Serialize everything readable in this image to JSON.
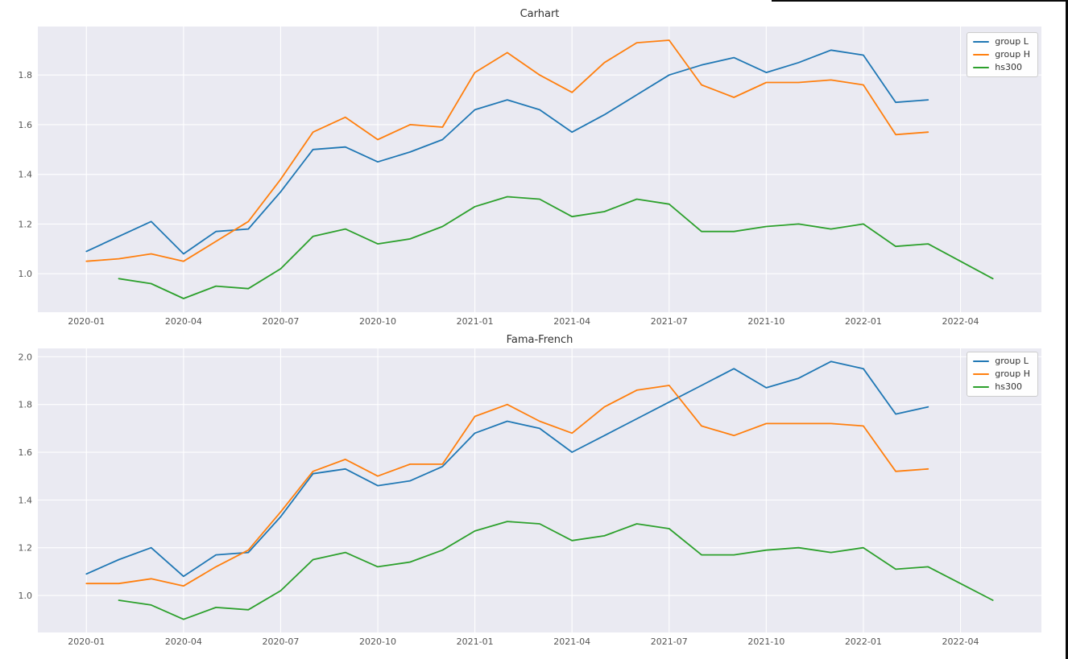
{
  "window": {
    "background": "#ffffff",
    "edge_color": "#0a0a0a"
  },
  "chart_data": [
    {
      "type": "line",
      "title": "Carhart",
      "xlabel": "",
      "ylabel": "",
      "grid": true,
      "legend_position": "upper right",
      "plot_bg": "#eaeaf2",
      "grid_color": "#ffffff",
      "x_tick_labels": [
        "2020-01",
        "2020-04",
        "2020-07",
        "2020-10",
        "2021-01",
        "2021-04",
        "2021-07",
        "2021-10",
        "2022-01",
        "2022-04"
      ],
      "y_tick_labels": [
        "1.0",
        "1.2",
        "1.4",
        "1.6",
        "1.8"
      ],
      "xlim_months": [
        -1.5,
        29.5
      ],
      "ylim": [
        0.845,
        1.995
      ],
      "series": [
        {
          "name": "group L",
          "color": "#1f77b4",
          "x": [
            "2020-01",
            "2020-02",
            "2020-03",
            "2020-04",
            "2020-05",
            "2020-06",
            "2020-07",
            "2020-08",
            "2020-09",
            "2020-10",
            "2020-11",
            "2020-12",
            "2021-01",
            "2021-02",
            "2021-03",
            "2021-04",
            "2021-05",
            "2021-06",
            "2021-07",
            "2021-08",
            "2021-09",
            "2021-10",
            "2021-11",
            "2021-12",
            "2022-01",
            "2022-02",
            "2022-03"
          ],
          "values": [
            1.09,
            1.15,
            1.21,
            1.08,
            1.17,
            1.18,
            1.33,
            1.5,
            1.51,
            1.45,
            1.49,
            1.54,
            1.66,
            1.7,
            1.66,
            1.57,
            1.64,
            1.72,
            1.8,
            1.84,
            1.87,
            1.81,
            1.85,
            1.9,
            1.88,
            1.69,
            1.7
          ]
        },
        {
          "name": "group H",
          "color": "#ff7f0e",
          "x": [
            "2020-01",
            "2020-02",
            "2020-03",
            "2020-04",
            "2020-05",
            "2020-06",
            "2020-07",
            "2020-08",
            "2020-09",
            "2020-10",
            "2020-11",
            "2020-12",
            "2021-01",
            "2021-02",
            "2021-03",
            "2021-04",
            "2021-05",
            "2021-06",
            "2021-07",
            "2021-08",
            "2021-09",
            "2021-10",
            "2021-11",
            "2021-12",
            "2022-01",
            "2022-02",
            "2022-03"
          ],
          "values": [
            1.05,
            1.06,
            1.08,
            1.05,
            1.13,
            1.21,
            1.38,
            1.57,
            1.63,
            1.54,
            1.6,
            1.59,
            1.81,
            1.89,
            1.8,
            1.73,
            1.85,
            1.93,
            1.94,
            1.76,
            1.71,
            1.77,
            1.77,
            1.78,
            1.76,
            1.56,
            1.57
          ]
        },
        {
          "name": "hs300",
          "color": "#2ca02c",
          "x": [
            "2020-02",
            "2020-03",
            "2020-04",
            "2020-05",
            "2020-06",
            "2020-07",
            "2020-08",
            "2020-09",
            "2020-10",
            "2020-11",
            "2020-12",
            "2021-01",
            "2021-02",
            "2021-03",
            "2021-04",
            "2021-05",
            "2021-06",
            "2021-07",
            "2021-08",
            "2021-09",
            "2021-10",
            "2021-11",
            "2021-12",
            "2022-01",
            "2022-02",
            "2022-03",
            "2022-04",
            "2022-05"
          ],
          "values": [
            0.98,
            0.96,
            0.9,
            0.95,
            0.94,
            1.02,
            1.15,
            1.18,
            1.12,
            1.14,
            1.19,
            1.27,
            1.31,
            1.3,
            1.23,
            1.25,
            1.3,
            1.28,
            1.17,
            1.17,
            1.19,
            1.2,
            1.18,
            1.2,
            1.11,
            1.12,
            1.05,
            0.98
          ]
        }
      ]
    },
    {
      "type": "line",
      "title": "Fama-French",
      "xlabel": "",
      "ylabel": "",
      "grid": true,
      "legend_position": "upper right",
      "plot_bg": "#eaeaf2",
      "grid_color": "#ffffff",
      "x_tick_labels": [
        "2020-01",
        "2020-04",
        "2020-07",
        "2020-10",
        "2021-01",
        "2021-04",
        "2021-07",
        "2021-10",
        "2022-01",
        "2022-04"
      ],
      "y_tick_labels": [
        "1.0",
        "1.2",
        "1.4",
        "1.6",
        "1.8",
        "2.0"
      ],
      "xlim_months": [
        -1.5,
        29.5
      ],
      "ylim": [
        0.845,
        2.035
      ],
      "series": [
        {
          "name": "group L",
          "color": "#1f77b4",
          "x": [
            "2020-01",
            "2020-02",
            "2020-03",
            "2020-04",
            "2020-05",
            "2020-06",
            "2020-07",
            "2020-08",
            "2020-09",
            "2020-10",
            "2020-11",
            "2020-12",
            "2021-01",
            "2021-02",
            "2021-03",
            "2021-04",
            "2021-05",
            "2021-06",
            "2021-07",
            "2021-08",
            "2021-09",
            "2021-10",
            "2021-11",
            "2021-12",
            "2022-01",
            "2022-02",
            "2022-03"
          ],
          "values": [
            1.09,
            1.15,
            1.2,
            1.08,
            1.17,
            1.18,
            1.33,
            1.51,
            1.53,
            1.46,
            1.48,
            1.54,
            1.68,
            1.73,
            1.7,
            1.6,
            1.67,
            1.74,
            1.81,
            1.88,
            1.95,
            1.87,
            1.91,
            1.98,
            1.95,
            1.76,
            1.79
          ]
        },
        {
          "name": "group H",
          "color": "#ff7f0e",
          "x": [
            "2020-01",
            "2020-02",
            "2020-03",
            "2020-04",
            "2020-05",
            "2020-06",
            "2020-07",
            "2020-08",
            "2020-09",
            "2020-10",
            "2020-11",
            "2020-12",
            "2021-01",
            "2021-02",
            "2021-03",
            "2021-04",
            "2021-05",
            "2021-06",
            "2021-07",
            "2021-08",
            "2021-09",
            "2021-10",
            "2021-11",
            "2021-12",
            "2022-01",
            "2022-02",
            "2022-03"
          ],
          "values": [
            1.05,
            1.05,
            1.07,
            1.04,
            1.12,
            1.19,
            1.35,
            1.52,
            1.57,
            1.5,
            1.55,
            1.55,
            1.75,
            1.8,
            1.73,
            1.68,
            1.79,
            1.86,
            1.88,
            1.71,
            1.67,
            1.72,
            1.72,
            1.72,
            1.71,
            1.52,
            1.53
          ]
        },
        {
          "name": "hs300",
          "color": "#2ca02c",
          "x": [
            "2020-02",
            "2020-03",
            "2020-04",
            "2020-05",
            "2020-06",
            "2020-07",
            "2020-08",
            "2020-09",
            "2020-10",
            "2020-11",
            "2020-12",
            "2021-01",
            "2021-02",
            "2021-03",
            "2021-04",
            "2021-05",
            "2021-06",
            "2021-07",
            "2021-08",
            "2021-09",
            "2021-10",
            "2021-11",
            "2021-12",
            "2022-01",
            "2022-02",
            "2022-03",
            "2022-04",
            "2022-05"
          ],
          "values": [
            0.98,
            0.96,
            0.9,
            0.95,
            0.94,
            1.02,
            1.15,
            1.18,
            1.12,
            1.14,
            1.19,
            1.27,
            1.31,
            1.3,
            1.23,
            1.25,
            1.3,
            1.28,
            1.17,
            1.17,
            1.19,
            1.2,
            1.18,
            1.2,
            1.11,
            1.12,
            1.05,
            0.98
          ]
        }
      ]
    }
  ]
}
